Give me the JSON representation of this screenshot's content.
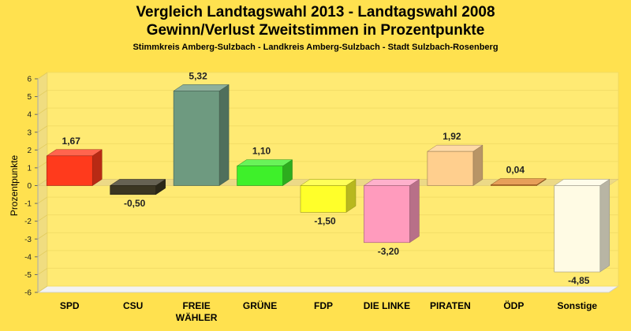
{
  "chart_data": {
    "type": "bar",
    "title_lines": [
      "Vergleich Landtagswahl 2013 - Landtagswahl 2008",
      "Gewinn/Verlust Zweitstimmen in Prozentpunkte"
    ],
    "subtitle": "Stimmkreis Amberg-Sulzbach - Landkreis Amberg-Sulzbach - Stadt Sulzbach-Rosenberg",
    "xlabel": "",
    "ylabel": "Prozentpunkte",
    "ylim": [
      -6,
      6
    ],
    "yticks": [
      6,
      5,
      4,
      3,
      2,
      1,
      0,
      -1,
      -2,
      -3,
      -4,
      -5,
      -6
    ],
    "grid": true,
    "categories": [
      "SPD",
      "CSU",
      "FREIE\nWÄHLER",
      "GRÜNE",
      "FDP",
      "DIE LINKE",
      "PIRATEN",
      "ÖDP",
      "Sonstige"
    ],
    "values": [
      1.67,
      -0.5,
      5.32,
      1.1,
      -1.5,
      -3.2,
      1.92,
      0.04,
      -4.85
    ],
    "value_labels": [
      "1,67",
      "-0,50",
      "5,32",
      "1,10",
      "-1,50",
      "-3,20",
      "1,92",
      "0,04",
      "-4,85"
    ],
    "colors": [
      "#ff3a1c",
      "#3b3622",
      "#6e9a80",
      "#3ef02a",
      "#ffff2a",
      "#ff9bbd",
      "#ffcf8e",
      "#e0842a",
      "#fffbe4"
    ]
  }
}
